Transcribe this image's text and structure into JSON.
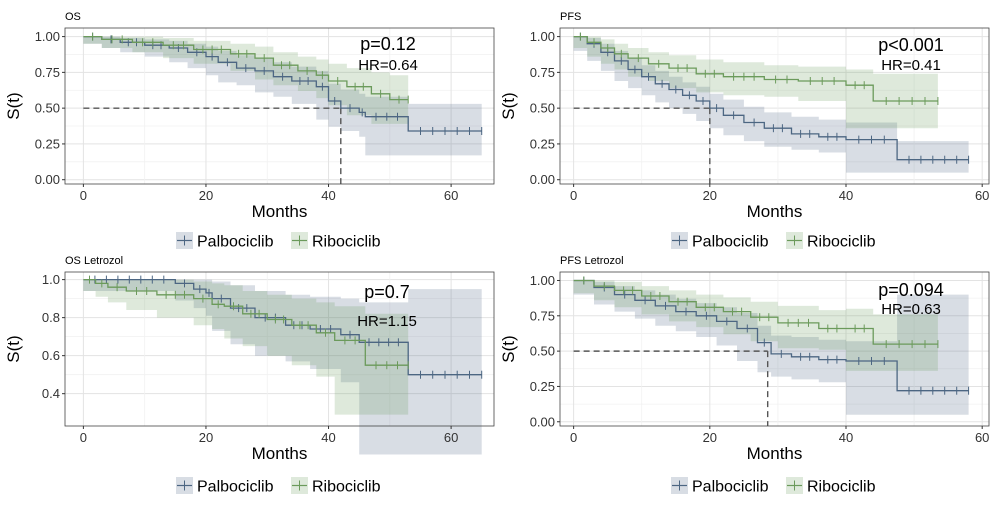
{
  "chart_data": [
    {
      "type": "line",
      "title": "OS",
      "xlabel": "Months",
      "ylabel": "S(t)",
      "xlim": [
        -3,
        67
      ],
      "ylim": [
        -0.03,
        1.06
      ],
      "xticks": [
        0,
        20,
        40,
        60
      ],
      "yticks": [
        0,
        0.25,
        0.5,
        0.75,
        1
      ],
      "ytick_labels": [
        "0.00",
        "0.25",
        "0.50",
        "0.75",
        "1.00"
      ],
      "annotations": [
        "p=0.12",
        "HR=0.64"
      ],
      "median_line": {
        "x": 42,
        "y": 0.5
      },
      "series": [
        {
          "name": "Palbociclib",
          "color": "#4c6682",
          "x": [
            0,
            3,
            6,
            10,
            14,
            17,
            20,
            22,
            25,
            28,
            31,
            34,
            38,
            40,
            42,
            45,
            46,
            53,
            65
          ],
          "y": [
            1.0,
            0.98,
            0.96,
            0.94,
            0.92,
            0.89,
            0.86,
            0.82,
            0.78,
            0.76,
            0.72,
            0.69,
            0.65,
            0.55,
            0.5,
            0.47,
            0.44,
            0.34,
            0.34
          ],
          "ci_upper": [
            1.0,
            1.0,
            0.99,
            0.98,
            0.97,
            0.95,
            0.93,
            0.9,
            0.87,
            0.85,
            0.82,
            0.79,
            0.76,
            0.67,
            0.63,
            0.6,
            0.58,
            0.53,
            0.53
          ],
          "ci_lower": [
            1.0,
            0.95,
            0.92,
            0.89,
            0.86,
            0.82,
            0.78,
            0.73,
            0.68,
            0.66,
            0.61,
            0.58,
            0.53,
            0.42,
            0.37,
            0.34,
            0.3,
            0.17,
            0.17
          ]
        },
        {
          "name": "Ribociclib",
          "color": "#6b9a5b",
          "x": [
            0,
            3,
            8,
            13,
            18,
            24,
            28,
            31,
            35,
            38,
            40,
            43,
            47,
            50,
            53
          ],
          "y": [
            1.0,
            0.98,
            0.96,
            0.94,
            0.91,
            0.88,
            0.85,
            0.8,
            0.76,
            0.73,
            0.69,
            0.65,
            0.6,
            0.56,
            0.56
          ],
          "ci_upper": [
            1.0,
            1.0,
            1.0,
            0.99,
            0.97,
            0.95,
            0.93,
            0.89,
            0.86,
            0.84,
            0.81,
            0.78,
            0.75,
            0.73,
            0.73
          ],
          "ci_lower": [
            1.0,
            0.95,
            0.92,
            0.89,
            0.85,
            0.81,
            0.76,
            0.7,
            0.66,
            0.62,
            0.57,
            0.52,
            0.45,
            0.39,
            0.39
          ]
        }
      ],
      "legend": {
        "position": "bottom",
        "entries": [
          "Palbociclib",
          "Ribociclib"
        ]
      }
    },
    {
      "type": "line",
      "title": "PFS",
      "xlabel": "Months",
      "ylabel": "S(t)",
      "xlim": [
        -2,
        61
      ],
      "ylim": [
        -0.03,
        1.06
      ],
      "xticks": [
        0,
        20,
        40,
        60
      ],
      "yticks": [
        0,
        0.25,
        0.5,
        0.75,
        1
      ],
      "ytick_labels": [
        "0.00",
        "0.25",
        "0.50",
        "0.75",
        "1.00"
      ],
      "annotations": [
        "p<0.001",
        "HR=0.41"
      ],
      "median_line": {
        "x": 20,
        "y": 0.5
      },
      "series": [
        {
          "name": "Palbociclib",
          "color": "#4c6682",
          "x": [
            0,
            2,
            4,
            6,
            8,
            10,
            12,
            14,
            16,
            18,
            20,
            22,
            25,
            28,
            32,
            36,
            40,
            47.5,
            58
          ],
          "y": [
            1.0,
            0.95,
            0.89,
            0.83,
            0.77,
            0.72,
            0.67,
            0.63,
            0.59,
            0.55,
            0.5,
            0.45,
            0.4,
            0.36,
            0.32,
            0.3,
            0.28,
            0.14,
            0.14
          ],
          "ci_upper": [
            1.0,
            0.99,
            0.95,
            0.9,
            0.85,
            0.8,
            0.76,
            0.72,
            0.68,
            0.65,
            0.6,
            0.56,
            0.51,
            0.47,
            0.44,
            0.42,
            0.4,
            0.27,
            0.27
          ],
          "ci_lower": [
            1.0,
            0.9,
            0.83,
            0.76,
            0.69,
            0.64,
            0.59,
            0.54,
            0.5,
            0.46,
            0.41,
            0.36,
            0.31,
            0.27,
            0.23,
            0.21,
            0.19,
            0.05,
            0.05
          ]
        },
        {
          "name": "Ribociclib",
          "color": "#6b9a5b",
          "x": [
            0,
            2,
            4,
            6,
            8,
            11,
            14,
            18,
            22,
            28,
            33,
            40,
            44,
            53.5
          ],
          "y": [
            1.0,
            0.96,
            0.92,
            0.88,
            0.85,
            0.81,
            0.78,
            0.74,
            0.72,
            0.7,
            0.69,
            0.66,
            0.55,
            0.55
          ],
          "ci_upper": [
            1.0,
            1.0,
            0.98,
            0.95,
            0.92,
            0.89,
            0.87,
            0.84,
            0.82,
            0.8,
            0.79,
            0.77,
            0.74,
            0.74
          ],
          "ci_lower": [
            1.0,
            0.92,
            0.86,
            0.81,
            0.77,
            0.72,
            0.69,
            0.64,
            0.61,
            0.59,
            0.58,
            0.55,
            0.36,
            0.36
          ]
        }
      ],
      "legend": {
        "position": "bottom",
        "entries": [
          "Palbociclib",
          "Ribociclib"
        ]
      }
    },
    {
      "type": "line",
      "title": "OS Letrozol",
      "xlabel": "Months",
      "ylabel": "S(t)",
      "xlim": [
        -3,
        67
      ],
      "ylim": [
        0.23,
        1.04
      ],
      "xticks": [
        0,
        20,
        40,
        60
      ],
      "yticks": [
        0.4,
        0.6,
        0.8,
        1.0
      ],
      "ytick_labels": [
        "0.4",
        "0.6",
        "0.8",
        "1.0"
      ],
      "annotations": [
        "p=0.7",
        "HR=1.15"
      ],
      "series": [
        {
          "name": "Palbociclib",
          "color": "#4c6682",
          "x": [
            0,
            15,
            18,
            20,
            21,
            24,
            28,
            33,
            37,
            42,
            45,
            53,
            65
          ],
          "y": [
            1.0,
            0.98,
            0.95,
            0.93,
            0.9,
            0.85,
            0.8,
            0.76,
            0.74,
            0.71,
            0.67,
            0.5,
            0.5
          ],
          "ci_upper": [
            1.0,
            1.0,
            1.0,
            1.0,
            0.99,
            0.97,
            0.94,
            0.92,
            0.91,
            0.9,
            0.88,
            0.95,
            0.95
          ],
          "ci_lower": [
            1.0,
            0.94,
            0.89,
            0.85,
            0.81,
            0.73,
            0.66,
            0.6,
            0.57,
            0.53,
            0.46,
            0.08,
            0.08
          ]
        },
        {
          "name": "Ribociclib",
          "color": "#6b9a5b",
          "x": [
            0,
            2,
            4,
            7,
            12,
            18,
            21,
            23,
            26,
            30,
            34,
            38,
            41,
            46,
            53
          ],
          "y": [
            1.0,
            0.98,
            0.96,
            0.94,
            0.92,
            0.9,
            0.87,
            0.86,
            0.82,
            0.79,
            0.76,
            0.72,
            0.68,
            0.55,
            0.55
          ],
          "ci_upper": [
            1.0,
            1.0,
            1.0,
            1.0,
            1.0,
            0.99,
            0.98,
            0.97,
            0.94,
            0.92,
            0.9,
            0.88,
            0.86,
            0.82,
            0.82
          ],
          "ci_lower": [
            1.0,
            0.94,
            0.91,
            0.88,
            0.84,
            0.8,
            0.76,
            0.74,
            0.69,
            0.65,
            0.6,
            0.55,
            0.49,
            0.29,
            0.29
          ]
        }
      ],
      "legend": {
        "position": "bottom",
        "entries": [
          "Palbociclib",
          "Ribociclib"
        ]
      }
    },
    {
      "type": "line",
      "title": "PFS Letrozol",
      "xlabel": "Months",
      "ylabel": "S(t)",
      "xlim": [
        -2,
        61
      ],
      "ylim": [
        -0.03,
        1.06
      ],
      "xticks": [
        0,
        20,
        40,
        60
      ],
      "yticks": [
        0,
        0.25,
        0.5,
        0.75,
        1
      ],
      "ytick_labels": [
        "0.00",
        "0.25",
        "0.50",
        "0.75",
        "1.00"
      ],
      "annotations": [
        "p=0.094",
        "HR=0.63"
      ],
      "median_line": {
        "x": 28.5,
        "y": 0.5
      },
      "series": [
        {
          "name": "Palbociclib",
          "color": "#4c6682",
          "x": [
            0,
            3,
            6,
            9,
            12,
            15,
            18,
            21,
            24,
            27,
            29,
            32,
            36,
            40,
            47.5,
            58
          ],
          "y": [
            1.0,
            0.95,
            0.9,
            0.86,
            0.82,
            0.78,
            0.75,
            0.71,
            0.66,
            0.56,
            0.48,
            0.46,
            0.44,
            0.43,
            0.22,
            0.22
          ],
          "ci_upper": [
            1.0,
            0.99,
            0.96,
            0.93,
            0.9,
            0.87,
            0.84,
            0.81,
            0.77,
            0.68,
            0.61,
            0.6,
            0.58,
            0.57,
            0.9,
            0.9
          ],
          "ci_lower": [
            1.0,
            0.9,
            0.83,
            0.78,
            0.73,
            0.68,
            0.64,
            0.6,
            0.54,
            0.43,
            0.35,
            0.32,
            0.3,
            0.28,
            0.05,
            0.05
          ]
        },
        {
          "name": "Ribociclib",
          "color": "#6b9a5b",
          "x": [
            0,
            3,
            6,
            10,
            14,
            18,
            22,
            26,
            30,
            36,
            40,
            44,
            53.5
          ],
          "y": [
            1.0,
            0.96,
            0.93,
            0.89,
            0.85,
            0.81,
            0.78,
            0.74,
            0.7,
            0.66,
            0.66,
            0.55,
            0.55
          ],
          "ci_upper": [
            1.0,
            1.0,
            0.99,
            0.96,
            0.93,
            0.9,
            0.88,
            0.85,
            0.82,
            0.79,
            0.8,
            0.76,
            0.76
          ],
          "ci_lower": [
            1.0,
            0.91,
            0.86,
            0.81,
            0.76,
            0.71,
            0.67,
            0.62,
            0.57,
            0.52,
            0.51,
            0.36,
            0.36
          ]
        }
      ],
      "legend": {
        "position": "bottom",
        "entries": [
          "Palbociclib",
          "Ribociclib"
        ]
      }
    }
  ]
}
